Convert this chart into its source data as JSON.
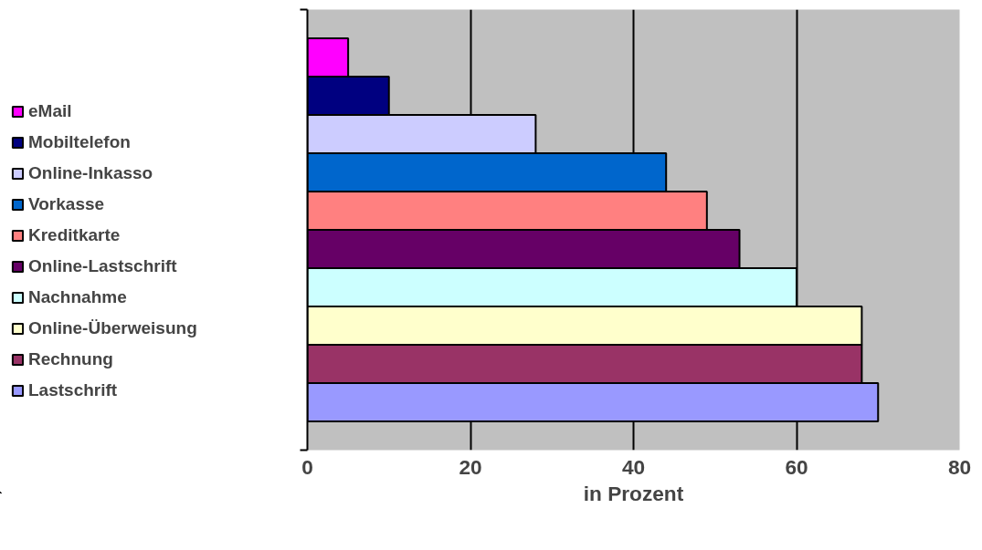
{
  "chart_data": {
    "type": "bar",
    "orientation": "horizontal",
    "xlabel": "in Prozent",
    "categories": [
      null
    ],
    "series": [
      {
        "name": "eMail",
        "color": "#ff00ff",
        "values": [
          5
        ]
      },
      {
        "name": "Mobiltelefon",
        "color": "#000080",
        "values": [
          10
        ]
      },
      {
        "name": "Online-Inkasso",
        "color": "#ccccff",
        "values": [
          28
        ]
      },
      {
        "name": "Vorkasse",
        "color": "#0066cc",
        "values": [
          44
        ]
      },
      {
        "name": "Kreditkarte",
        "color": "#ff8080",
        "values": [
          49
        ]
      },
      {
        "name": "Online-Lastschrift",
        "color": "#660066",
        "values": [
          53
        ]
      },
      {
        "name": "Nachnahme",
        "color": "#ccffff",
        "values": [
          60
        ]
      },
      {
        "name": "Online-Überweisung",
        "color": "#ffffcc",
        "values": [
          68
        ]
      },
      {
        "name": "Rechnung",
        "color": "#993366",
        "values": [
          68
        ]
      },
      {
        "name": "Lastschrift",
        "color": "#9999ff",
        "values": [
          70
        ]
      }
    ],
    "xlim": [
      0,
      80
    ],
    "xticks": [
      0,
      20,
      40,
      60,
      80
    ],
    "grid": "x",
    "legend": "left"
  }
}
